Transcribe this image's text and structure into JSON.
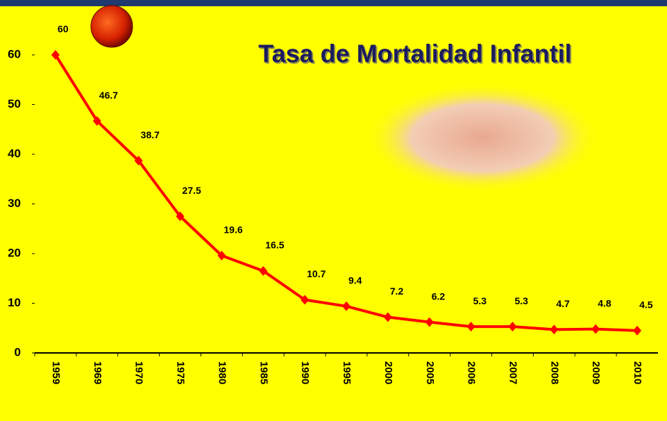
{
  "chart_data": {
    "type": "line",
    "title": "Tasa de Mortalidad Infantil",
    "categories": [
      "1959",
      "1969",
      "1970",
      "1975",
      "1980",
      "1985",
      "1990",
      "1995",
      "2000",
      "2005",
      "2006",
      "2007",
      "2008",
      "2009",
      "2010"
    ],
    "values": [
      60,
      46.7,
      38.7,
      27.5,
      19.6,
      16.5,
      10.7,
      9.4,
      7.2,
      6.2,
      5.3,
      5.3,
      4.7,
      4.8,
      4.5
    ],
    "color": "#ff0000",
    "ylim": [
      0,
      70
    ],
    "yticks": [
      0,
      10,
      20,
      30,
      40,
      50,
      60
    ],
    "grid": false
  }
}
